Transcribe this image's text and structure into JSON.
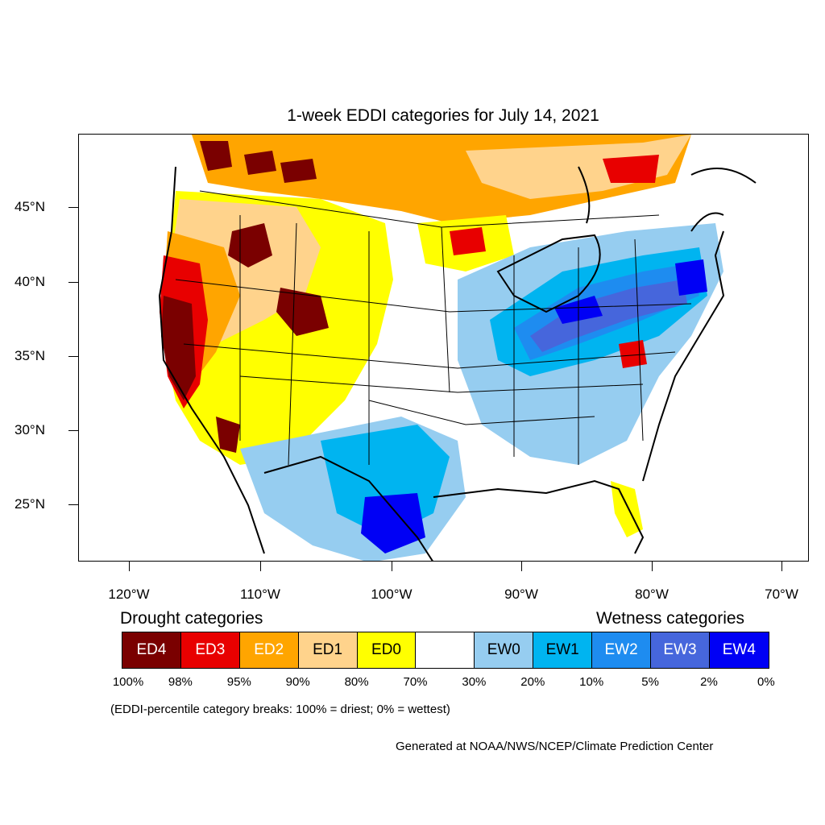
{
  "title": "1-week EDDI categories for July 14, 2021",
  "map": {
    "lat_labels": [
      "45°N",
      "40°N",
      "35°N",
      "30°N",
      "25°N"
    ],
    "lon_labels": [
      "120°W",
      "110°W",
      "100°W",
      "90°W",
      "80°W",
      "70°W"
    ],
    "colors": {
      "ED4": "#7a0000",
      "ED3": "#e80000",
      "ED2": "#ffa500",
      "ED1": "#ffd38c",
      "ED0": "#ffff00",
      "neutral": "#ffffff",
      "EW0": "#96cdf0",
      "EW1": "#00b4f0",
      "EW2": "#1e8cf0",
      "EW3": "#4666dc",
      "EW4": "#0000f5"
    }
  },
  "legend": {
    "drought_heading": "Drought categories",
    "wetness_heading": "Wetness categories",
    "categories": [
      {
        "label": "ED4",
        "color": "#7a0000",
        "text_color": "#ffffff"
      },
      {
        "label": "ED3",
        "color": "#e80000",
        "text_color": "#ffffff"
      },
      {
        "label": "ED2",
        "color": "#ffa500",
        "text_color": "#ffffff"
      },
      {
        "label": "ED1",
        "color": "#ffd38c",
        "text_color": "#000000"
      },
      {
        "label": "ED0",
        "color": "#ffff00",
        "text_color": "#000000"
      },
      {
        "label": "",
        "color": "#ffffff",
        "text_color": "#000000"
      },
      {
        "label": "EW0",
        "color": "#96cdf0",
        "text_color": "#000000"
      },
      {
        "label": "EW1",
        "color": "#00b4f0",
        "text_color": "#000000"
      },
      {
        "label": "EW2",
        "color": "#1e8cf0",
        "text_color": "#ffffff"
      },
      {
        "label": "EW3",
        "color": "#4666dc",
        "text_color": "#ffffff"
      },
      {
        "label": "EW4",
        "color": "#0000f5",
        "text_color": "#ffffff"
      }
    ],
    "breaks": [
      "100%",
      "98%",
      "95%",
      "90%",
      "80%",
      "70%",
      "30%",
      "20%",
      "10%",
      "5%",
      "2%",
      "0%"
    ]
  },
  "note": "(EDDI-percentile category breaks: 100% = driest; 0% = wettest)",
  "credit": "Generated at NOAA/NWS/NCEP/Climate Prediction Center"
}
